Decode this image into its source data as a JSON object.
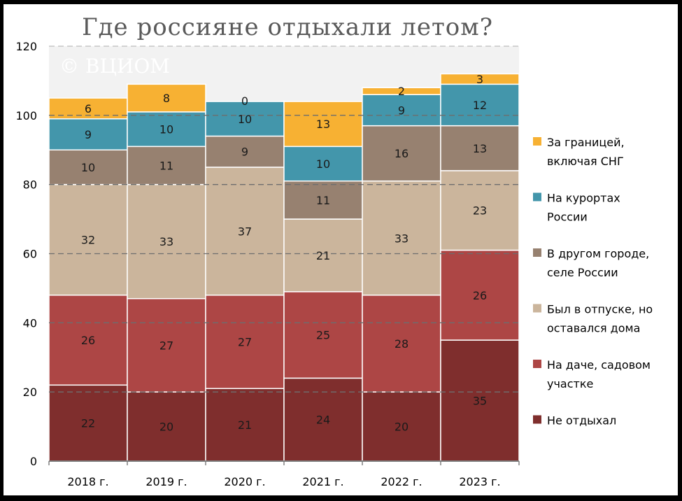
{
  "chart_data": {
    "type": "bar",
    "stacked": true,
    "title": "Где россияне отдыхали летом?",
    "watermark": "© ВЦИОМ",
    "categories": [
      "2018 г.",
      "2019 г.",
      "2020 г.",
      "2021 г.",
      "2022 г.",
      "2023 г."
    ],
    "ylim": [
      0,
      120
    ],
    "yticks": [
      0,
      20,
      40,
      60,
      80,
      100,
      120
    ],
    "grid": true,
    "legend_position": "right",
    "series": [
      {
        "name": "Не отдыхал",
        "legend_lines": [
          "Не отдыхал"
        ],
        "color": "#7f2e2d",
        "values": [
          22,
          20,
          21,
          24,
          20,
          35
        ]
      },
      {
        "name": "На даче, садовом участке",
        "legend_lines": [
          "На даче, садовом",
          "участке"
        ],
        "color": "#ad4645",
        "values": [
          26,
          27,
          27,
          25,
          28,
          26
        ]
      },
      {
        "name": "Был в отпуске, но оставался дома",
        "legend_lines": [
          "Был в отпуске, но",
          "оставался дома"
        ],
        "color": "#cbb59c",
        "values": [
          32,
          33,
          37,
          21,
          33,
          23
        ]
      },
      {
        "name": "В другом городе, селе России",
        "legend_lines": [
          "В другом городе,",
          "селе России"
        ],
        "color": "#978170",
        "values": [
          10,
          11,
          9,
          11,
          16,
          13
        ]
      },
      {
        "name": "На курортах России",
        "legend_lines": [
          "На курортах",
          "России"
        ],
        "color": "#4396ab",
        "values": [
          9,
          10,
          10,
          10,
          9,
          12
        ]
      },
      {
        "name": "За границей, включая СНГ",
        "legend_lines": [
          "За границей,",
          "включая СНГ"
        ],
        "color": "#f7b133",
        "values": [
          6,
          8,
          0,
          13,
          2,
          3
        ]
      }
    ]
  }
}
